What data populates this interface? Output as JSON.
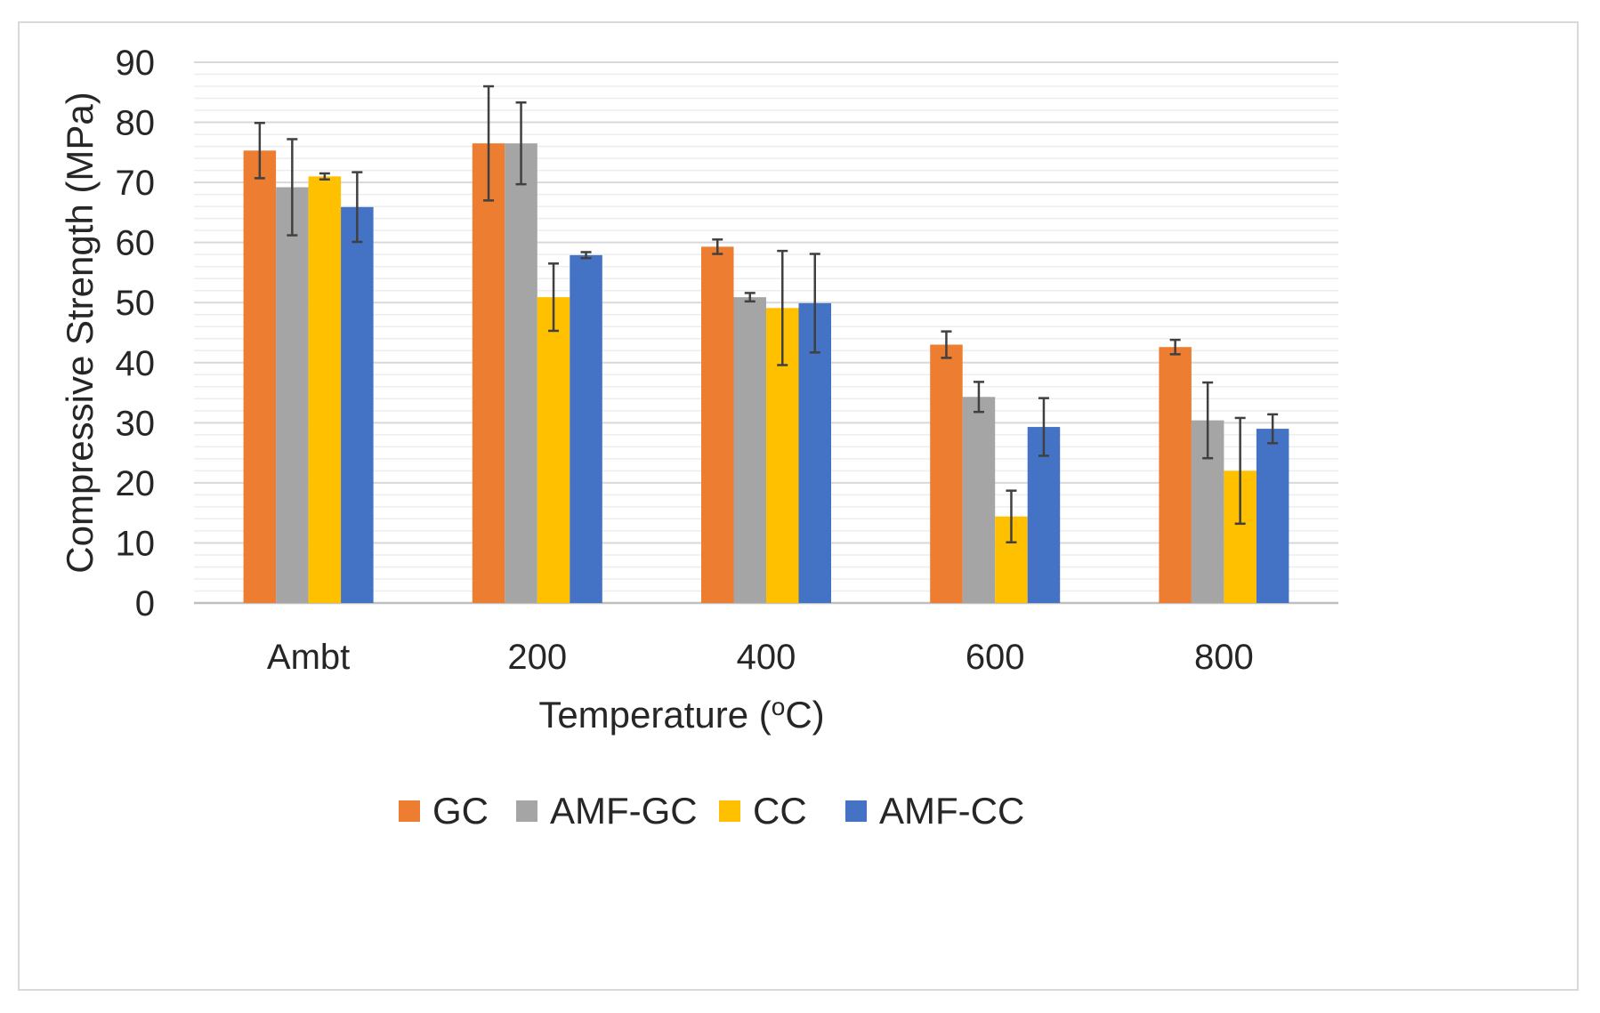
{
  "chart_data": {
    "type": "bar",
    "title": "",
    "xlabel": "Temperature (",
    "xlabel_sup": "o",
    "xlabel_end": "C)",
    "ylabel": "Compressive Strength (MPa)",
    "ylim": [
      0,
      90
    ],
    "yticks": [
      0,
      10,
      20,
      30,
      40,
      50,
      60,
      70,
      80,
      90
    ],
    "grid": true,
    "legend_position": "bottom",
    "categories": [
      "Ambt",
      "200",
      "400",
      "600",
      "800"
    ],
    "series": [
      {
        "name": "GC",
        "color": "#ED7D31",
        "values": [
          75.3,
          76.5,
          59.3,
          43.0,
          42.6
        ],
        "errors": [
          4.6,
          9.5,
          1.2,
          2.2,
          1.2
        ]
      },
      {
        "name": "AMF-GC",
        "color": "#A5A5A5",
        "values": [
          69.2,
          76.5,
          50.9,
          34.3,
          30.4
        ],
        "errors": [
          8.0,
          6.8,
          0.7,
          2.5,
          6.3
        ]
      },
      {
        "name": "CC",
        "color": "#FFC000",
        "values": [
          71.0,
          50.9,
          49.1,
          14.4,
          22.0
        ],
        "errors": [
          0.5,
          5.6,
          9.5,
          4.3,
          8.8
        ]
      },
      {
        "name": "AMF-CC",
        "color": "#4472C4",
        "values": [
          65.9,
          57.9,
          49.9,
          29.3,
          29.0
        ],
        "errors": [
          5.8,
          0.5,
          8.2,
          4.8,
          2.4
        ]
      }
    ]
  }
}
